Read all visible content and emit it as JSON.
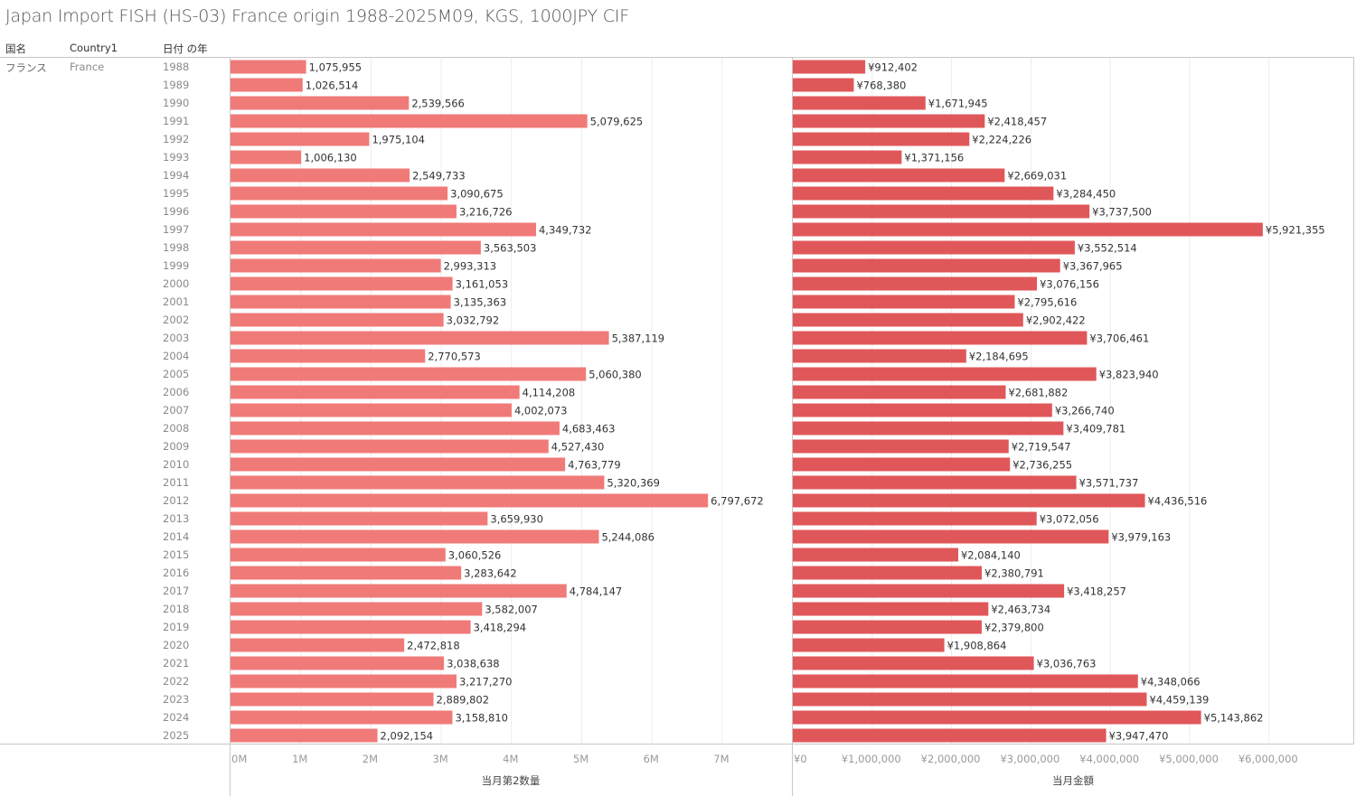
{
  "title": "Japan Import FISH (HS-03) France origin 1988-2025M09, KGS, 1000JPY CIF",
  "headers": {
    "col1": "国名",
    "col2": "Country1",
    "col3": "日付 の年"
  },
  "row_labels": {
    "country_ja": "フランス",
    "country_en": "France"
  },
  "colors": {
    "quantity_bar": "#f07a78",
    "amount_bar": "#e0575a",
    "gridline": "#ececec",
    "border": "#c8c8c8",
    "tick_text": "#999999"
  },
  "chart_data": [
    {
      "type": "bar",
      "orientation": "horizontal",
      "title": "",
      "xlabel": "当月第2数量",
      "ylabel": "日付 の年",
      "xlim": [
        0,
        7800000
      ],
      "x_ticks": [
        0,
        1000000,
        2000000,
        3000000,
        4000000,
        5000000,
        6000000,
        7000000
      ],
      "x_tick_labels": [
        "0M",
        "1M",
        "2M",
        "3M",
        "4M",
        "5M",
        "6M",
        "7M"
      ],
      "grid": true,
      "categories": [
        "1988",
        "1989",
        "1990",
        "1991",
        "1992",
        "1993",
        "1994",
        "1995",
        "1996",
        "1997",
        "1998",
        "1999",
        "2000",
        "2001",
        "2002",
        "2003",
        "2004",
        "2005",
        "2006",
        "2007",
        "2008",
        "2009",
        "2010",
        "2011",
        "2012",
        "2013",
        "2014",
        "2015",
        "2016",
        "2017",
        "2018",
        "2019",
        "2020",
        "2021",
        "2022",
        "2023",
        "2024",
        "2025"
      ],
      "values": [
        1075955,
        1026514,
        2539566,
        5079625,
        1975104,
        1006130,
        2549733,
        3090675,
        3216726,
        4349732,
        3563503,
        2993313,
        3161053,
        3135363,
        3032792,
        5387119,
        2770573,
        5060380,
        4114208,
        4002073,
        4683463,
        4527430,
        4763779,
        5320369,
        6797672,
        3659930,
        5244086,
        3060526,
        3283642,
        4784147,
        3582007,
        3418294,
        2472818,
        3038638,
        3217270,
        2889802,
        3158810,
        2092154
      ],
      "value_labels": [
        "1,075,955",
        "1,026,514",
        "2,539,566",
        "5,079,625",
        "1,975,104",
        "1,006,130",
        "2,549,733",
        "3,090,675",
        "3,216,726",
        "4,349,732",
        "3,563,503",
        "2,993,313",
        "3,161,053",
        "3,135,363",
        "3,032,792",
        "5,387,119",
        "2,770,573",
        "5,060,380",
        "4,114,208",
        "4,002,073",
        "4,683,463",
        "4,527,430",
        "4,763,779",
        "5,320,369",
        "6,797,672",
        "3,659,930",
        "5,244,086",
        "3,060,526",
        "3,283,642",
        "4,784,147",
        "3,582,007",
        "3,418,294",
        "2,472,818",
        "3,038,638",
        "3,217,270",
        "2,889,802",
        "3,158,810",
        "2,092,154"
      ]
    },
    {
      "type": "bar",
      "orientation": "horizontal",
      "title": "",
      "xlabel": "当月金額",
      "ylabel": "日付 の年",
      "xlim": [
        0,
        7000000
      ],
      "x_ticks": [
        0,
        1000000,
        2000000,
        3000000,
        4000000,
        5000000,
        6000000
      ],
      "x_tick_labels": [
        "¥0",
        "¥1,000,000",
        "¥2,000,000",
        "¥3,000,000",
        "¥4,000,000",
        "¥5,000,000",
        "¥6,000,000"
      ],
      "grid": true,
      "categories": [
        "1988",
        "1989",
        "1990",
        "1991",
        "1992",
        "1993",
        "1994",
        "1995",
        "1996",
        "1997",
        "1998",
        "1999",
        "2000",
        "2001",
        "2002",
        "2003",
        "2004",
        "2005",
        "2006",
        "2007",
        "2008",
        "2009",
        "2010",
        "2011",
        "2012",
        "2013",
        "2014",
        "2015",
        "2016",
        "2017",
        "2018",
        "2019",
        "2020",
        "2021",
        "2022",
        "2023",
        "2024",
        "2025"
      ],
      "values": [
        912402,
        768380,
        1671945,
        2418457,
        2224226,
        1371156,
        2669031,
        3284450,
        3737500,
        5921355,
        3552514,
        3367965,
        3076156,
        2795616,
        2902422,
        3706461,
        2184695,
        3823940,
        2681882,
        3266740,
        3409781,
        2719547,
        2736255,
        3571737,
        4436516,
        3072056,
        3979163,
        2084140,
        2380791,
        3418257,
        2463734,
        2379800,
        1908864,
        3036763,
        4348066,
        4459139,
        5143862,
        3947470
      ],
      "value_labels": [
        "¥912,402",
        "¥768,380",
        "¥1,671,945",
        "¥2,418,457",
        "¥2,224,226",
        "¥1,371,156",
        "¥2,669,031",
        "¥3,284,450",
        "¥3,737,500",
        "¥5,921,355",
        "¥3,552,514",
        "¥3,367,965",
        "¥3,076,156",
        "¥2,795,616",
        "¥2,902,422",
        "¥3,706,461",
        "¥2,184,695",
        "¥3,823,940",
        "¥2,681,882",
        "¥3,266,740",
        "¥3,409,781",
        "¥2,719,547",
        "¥2,736,255",
        "¥3,571,737",
        "¥4,436,516",
        "¥3,072,056",
        "¥3,979,163",
        "¥2,084,140",
        "¥2,380,791",
        "¥3,418,257",
        "¥2,463,734",
        "¥2,379,800",
        "¥1,908,864",
        "¥3,036,763",
        "¥4,348,066",
        "¥4,459,139",
        "¥5,143,862",
        "¥3,947,470"
      ]
    }
  ]
}
